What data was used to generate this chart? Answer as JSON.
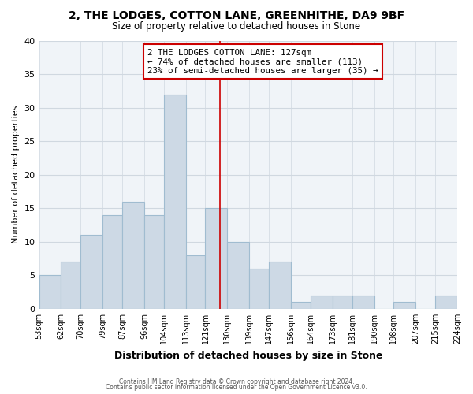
{
  "title": "2, THE LODGES, COTTON LANE, GREENHITHE, DA9 9BF",
  "subtitle": "Size of property relative to detached houses in Stone",
  "xlabel": "Distribution of detached houses by size in Stone",
  "ylabel": "Number of detached properties",
  "bar_color": "#cdd9e5",
  "bar_edge_color": "#a0bcd0",
  "background_color": "#ffffff",
  "plot_bg_color": "#f0f4f8",
  "bins": [
    53,
    62,
    70,
    79,
    87,
    96,
    104,
    113,
    121,
    130,
    139,
    147,
    156,
    164,
    173,
    181,
    190,
    198,
    207,
    215,
    224
  ],
  "values": [
    5,
    7,
    11,
    14,
    16,
    14,
    32,
    8,
    15,
    10,
    6,
    7,
    1,
    2,
    2,
    2,
    0,
    1,
    0,
    2
  ],
  "tick_labels": [
    "53sqm",
    "62sqm",
    "70sqm",
    "79sqm",
    "87sqm",
    "96sqm",
    "104sqm",
    "113sqm",
    "121sqm",
    "130sqm",
    "139sqm",
    "147sqm",
    "156sqm",
    "164sqm",
    "173sqm",
    "181sqm",
    "190sqm",
    "198sqm",
    "207sqm",
    "215sqm",
    "224sqm"
  ],
  "property_line_x": 127,
  "property_line_color": "#cc0000",
  "annotation_title": "2 THE LODGES COTTON LANE: 127sqm",
  "annotation_line1": "← 74% of detached houses are smaller (113)",
  "annotation_line2": "23% of semi-detached houses are larger (35) →",
  "annotation_box_color": "#ffffff",
  "annotation_box_edge_color": "#cc0000",
  "ylim": [
    0,
    40
  ],
  "yticks": [
    0,
    5,
    10,
    15,
    20,
    25,
    30,
    35,
    40
  ],
  "grid_color": "#d0d8e0",
  "footer1": "Contains HM Land Registry data © Crown copyright and database right 2024.",
  "footer2": "Contains public sector information licensed under the Open Government Licence v3.0."
}
